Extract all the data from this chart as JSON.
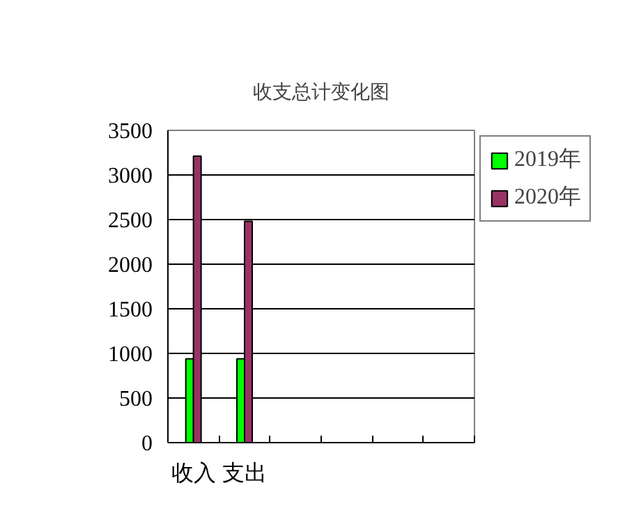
{
  "chart_data": {
    "type": "bar",
    "title": "收支总计变化图",
    "categories": [
      "收入",
      "支出",
      null,
      null,
      null,
      null
    ],
    "series": [
      {
        "name": "2019年",
        "color": "#00ff00",
        "values": [
          940,
          940,
          null,
          null,
          null,
          null
        ]
      },
      {
        "name": "2020年",
        "color": "#993366",
        "values": [
          3210,
          2480,
          null,
          null,
          null,
          null
        ]
      }
    ],
    "ylim": [
      0,
      3500
    ],
    "yticks": [
      0,
      500,
      1000,
      1500,
      2000,
      2500,
      3000,
      3500
    ],
    "grid": "y",
    "legend": "top right"
  }
}
